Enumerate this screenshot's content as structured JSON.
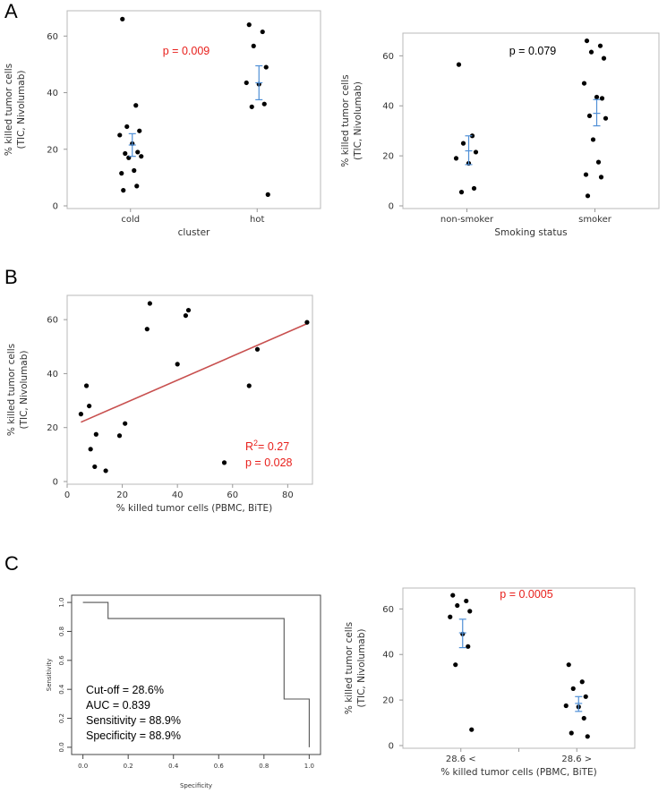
{
  "panels": {
    "a": "A",
    "b": "B",
    "c": "C"
  },
  "chart_data": [
    {
      "id": "a1",
      "type": "scatter",
      "ylabel_line1": "% killed tumor cells",
      "ylabel_line2": "(TIC, Nivolumab)",
      "xlabel": "cluster",
      "categories": [
        "cold",
        "hot"
      ],
      "ylim": [
        0,
        68
      ],
      "yticks": [
        0,
        20,
        40,
        60
      ],
      "annotation": "p = 0.009",
      "annotation_color": "#e8201c",
      "groups": [
        {
          "name": "cold",
          "values": [
            66,
            35.5,
            28,
            26.5,
            25,
            22,
            19,
            18.5,
            17.5,
            17,
            12.5,
            11.5,
            7,
            5.5
          ],
          "mean": 21.5,
          "err": [
            17.5,
            25.5
          ]
        },
        {
          "name": "hot",
          "values": [
            64,
            61.5,
            56.5,
            49,
            43.5,
            43,
            36,
            35,
            4
          ],
          "mean": 43.5,
          "err": [
            37.5,
            49.5
          ]
        }
      ]
    },
    {
      "id": "a2",
      "type": "scatter",
      "ylabel_line1": "% killed tumor cells",
      "ylabel_line2": "(TIC, Nivolumab)",
      "xlabel": "Smoking status",
      "categories": [
        "non-smoker",
        "smoker"
      ],
      "ylim": [
        0,
        68
      ],
      "yticks": [
        0,
        20,
        40,
        60
      ],
      "annotation": "p = 0.079",
      "annotation_color": "#000000",
      "groups": [
        {
          "name": "non-smoker",
          "values": [
            56.5,
            28,
            25,
            21.5,
            19,
            17,
            7,
            5.5
          ],
          "mean": 22,
          "err": [
            16.5,
            28
          ]
        },
        {
          "name": "smoker",
          "values": [
            66,
            64,
            61.5,
            59,
            49,
            43.5,
            43,
            36,
            35,
            26.5,
            17.5,
            12.5,
            11.5,
            4
          ],
          "mean": 37,
          "err": [
            32,
            42.5
          ]
        }
      ]
    },
    {
      "id": "b",
      "type": "scatter",
      "ylabel_line1": "% killed tumor cells",
      "ylabel_line2": "(TIC, Nivolumab)",
      "xlabel": "% killed tumor cells (PBMC, BiTE)",
      "xlim": [
        0,
        88
      ],
      "ylim": [
        0,
        68
      ],
      "xticks": [
        0,
        20,
        40,
        60,
        80
      ],
      "yticks": [
        0,
        20,
        40,
        60
      ],
      "r2_prefix": "R",
      "r2_sup": "2",
      "r2_value": "= 0.27",
      "p_value": "p = 0.028",
      "points": [
        {
          "x": 5,
          "y": 25
        },
        {
          "x": 7,
          "y": 35.5
        },
        {
          "x": 8,
          "y": 28
        },
        {
          "x": 8.5,
          "y": 12
        },
        {
          "x": 10,
          "y": 5.5
        },
        {
          "x": 10.5,
          "y": 17.5
        },
        {
          "x": 14,
          "y": 4
        },
        {
          "x": 19,
          "y": 17
        },
        {
          "x": 21,
          "y": 21.5
        },
        {
          "x": 29,
          "y": 56.5
        },
        {
          "x": 30,
          "y": 66
        },
        {
          "x": 40,
          "y": 43.5
        },
        {
          "x": 43,
          "y": 61.5
        },
        {
          "x": 44,
          "y": 63.5
        },
        {
          "x": 57,
          "y": 7
        },
        {
          "x": 66,
          "y": 35.5
        },
        {
          "x": 69,
          "y": 49
        },
        {
          "x": 87,
          "y": 59
        }
      ],
      "fit": {
        "x0": 5,
        "y0": 22,
        "x1": 87,
        "y1": 58.5,
        "color": "#c8504f"
      }
    },
    {
      "id": "c1",
      "type": "line",
      "xlabel": "Specificity",
      "ylabel": "Sensitivity",
      "xlim": [
        -0.05,
        1.05
      ],
      "ylim": [
        -0.05,
        1.05
      ],
      "xticks": [
        "0.0",
        "0.2",
        "0.4",
        "0.6",
        "0.8",
        "1.0"
      ],
      "yticks": [
        "0.0",
        "0.2",
        "0.4",
        "0.6",
        "0.8",
        "1.0"
      ],
      "curve": [
        [
          0,
          1
        ],
        [
          0.111,
          1
        ],
        [
          0.111,
          0.889
        ],
        [
          0.889,
          0.889
        ],
        [
          0.889,
          0.333
        ],
        [
          1,
          0.333
        ],
        [
          1,
          0
        ]
      ],
      "stats": [
        "Cut-off = 28.6%",
        "AUC = 0.839",
        "Sensitivity = 88.9%",
        "Specificity = 88.9%"
      ]
    },
    {
      "id": "c2",
      "type": "scatter",
      "ylabel_line1": "% killed tumor cells",
      "ylabel_line2": "(TIC, Nivolumab)",
      "xlabel": "% killed tumor cells (PBMC, BiTE)",
      "categories": [
        "28.6 <",
        "28.6 >"
      ],
      "ylim": [
        0,
        68
      ],
      "yticks": [
        0,
        20,
        40,
        60
      ],
      "annotation": "p = 0.0005",
      "annotation_color": "#e8201c",
      "groups": [
        {
          "name": "28.6 <",
          "values": [
            66,
            63.5,
            61.5,
            59,
            56.5,
            49,
            43.5,
            35.5,
            7
          ],
          "mean": 49.5,
          "err": [
            43,
            55.5
          ]
        },
        {
          "name": "28.6 >",
          "values": [
            35.5,
            28,
            25,
            21.5,
            17.5,
            17,
            12,
            5.5,
            4
          ],
          "mean": 18.5,
          "err": [
            15,
            21.5
          ]
        }
      ]
    }
  ]
}
